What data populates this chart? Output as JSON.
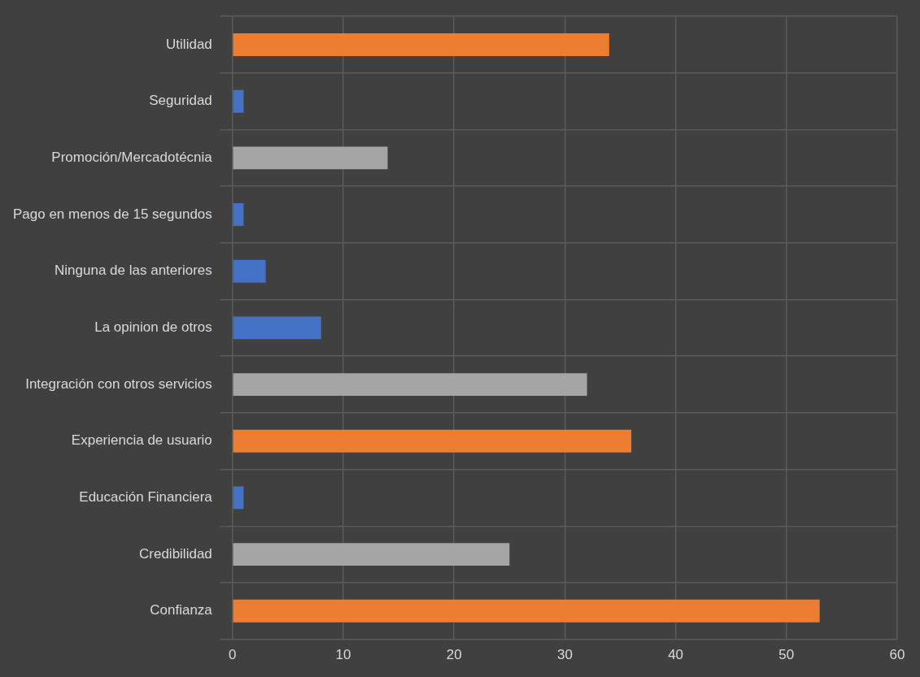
{
  "chart_data": {
    "type": "bar",
    "orientation": "horizontal",
    "categories": [
      "Utilidad",
      "Seguridad",
      "Promoción/Mercadotécnia",
      "Pago en menos de 15 segundos",
      "Ninguna de las anteriores",
      "La opinion de otros",
      "Integración con otros servicios",
      "Experiencia de usuario",
      "Educación Financiera",
      "Credibilidad",
      "Confianza"
    ],
    "values": [
      34,
      1,
      14,
      1,
      3,
      8,
      32,
      36,
      1,
      25,
      53
    ],
    "colors": [
      "#ed7d31",
      "#4472c4",
      "#a5a5a5",
      "#4472c4",
      "#4472c4",
      "#4472c4",
      "#a5a5a5",
      "#ed7d31",
      "#4472c4",
      "#a5a5a5",
      "#ed7d31"
    ],
    "xlim": [
      0,
      60
    ],
    "xticks": [
      0,
      10,
      20,
      30,
      40,
      50,
      60
    ],
    "grid": true,
    "legend": false
  }
}
